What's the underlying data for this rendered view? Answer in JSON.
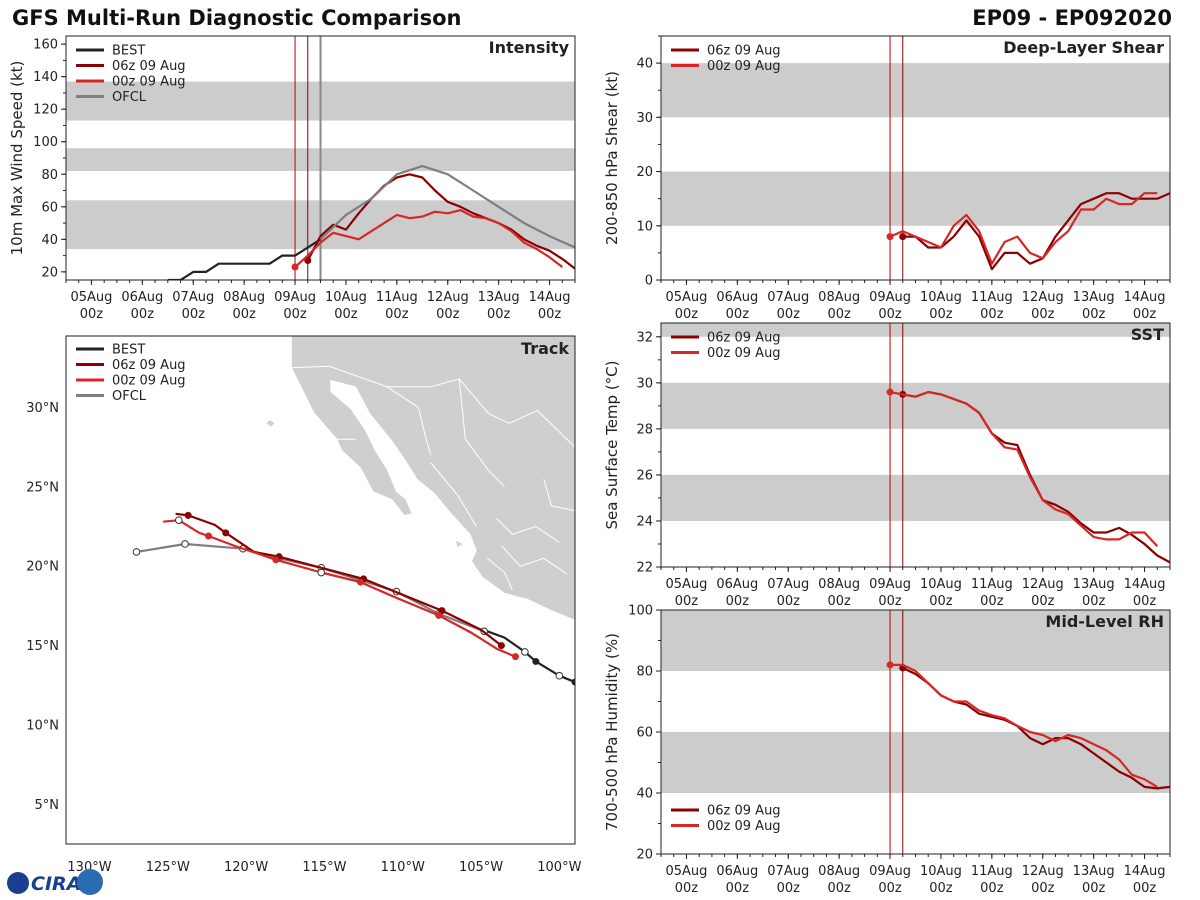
{
  "header": {
    "title": "GFS Multi-Run Diagnostic Comparison",
    "storm": "EP09 - EP092020"
  },
  "logo": {
    "text": "CIRA"
  },
  "colors": {
    "best": "#222222",
    "run06": "#8b0000",
    "run00": "#d62728",
    "ofcl": "#7f7f7f",
    "band": "#cccccc",
    "vline": "#c00000",
    "vline_ofcl": "#888888"
  },
  "time_ticks": [
    {
      "t": 0,
      "day": "05Aug",
      "hr": "00z"
    },
    {
      "t": 24,
      "day": "06Aug",
      "hr": "00z"
    },
    {
      "t": 48,
      "day": "07Aug",
      "hr": "00z"
    },
    {
      "t": 72,
      "day": "08Aug",
      "hr": "00z"
    },
    {
      "t": 96,
      "day": "09Aug",
      "hr": "00z"
    },
    {
      "t": 120,
      "day": "10Aug",
      "hr": "00z"
    },
    {
      "t": 144,
      "day": "11Aug",
      "hr": "00z"
    },
    {
      "t": 168,
      "day": "12Aug",
      "hr": "00z"
    },
    {
      "t": 192,
      "day": "13Aug",
      "hr": "00z"
    },
    {
      "t": 216,
      "day": "14Aug",
      "hr": "00z"
    }
  ],
  "chart_data": [
    {
      "id": "intensity",
      "type": "line",
      "title": "Intensity",
      "ylabel": "10m Max Wind Speed (kt)",
      "xlim": [
        -12,
        228
      ],
      "ylim": [
        15,
        165
      ],
      "yticks": [
        20,
        40,
        60,
        80,
        100,
        120,
        140,
        160
      ],
      "bands": [
        [
          34,
          64
        ],
        [
          82,
          96
        ],
        [
          113,
          137
        ]
      ],
      "vlines": [
        {
          "t": 96,
          "series": "00z"
        },
        {
          "t": 102,
          "series": "06z"
        },
        {
          "t": 108,
          "series": "OFCL"
        }
      ],
      "legend": [
        "BEST",
        "06z 09 Aug",
        "00z 09 Aug",
        "OFCL"
      ],
      "series": [
        {
          "name": "BEST",
          "color": "#222222",
          "t": [
            36,
            42,
            48,
            54,
            60,
            66,
            72,
            78,
            84,
            90,
            96,
            102,
            108
          ],
          "v": [
            15,
            15,
            20,
            20,
            25,
            25,
            25,
            25,
            25,
            30,
            30,
            35,
            40
          ]
        },
        {
          "name": "06z 09 Aug",
          "color": "#8b0000",
          "start_dot": true,
          "t": [
            102,
            108,
            114,
            120,
            126,
            132,
            138,
            144,
            150,
            156,
            162,
            168,
            174,
            180,
            186,
            192,
            198,
            204,
            210,
            216,
            222,
            228
          ],
          "v": [
            27,
            42,
            49,
            46,
            56,
            65,
            73,
            78,
            80,
            78,
            70,
            63,
            60,
            56,
            53,
            50,
            46,
            40,
            36,
            33,
            28,
            22
          ]
        },
        {
          "name": "00z 09 Aug",
          "color": "#d62728",
          "start_dot": true,
          "t": [
            96,
            102,
            108,
            114,
            120,
            126,
            132,
            138,
            144,
            150,
            156,
            162,
            168,
            174,
            180,
            186,
            192,
            198,
            204,
            210,
            216,
            222
          ],
          "v": [
            23,
            30,
            38,
            44,
            42,
            40,
            45,
            50,
            55,
            53,
            54,
            57,
            56,
            58,
            54,
            53,
            50,
            45,
            38,
            34,
            29,
            23
          ]
        },
        {
          "name": "OFCL",
          "color": "#7f7f7f",
          "t": [
            108,
            120,
            132,
            144,
            156,
            168,
            180,
            192,
            204,
            216,
            228
          ],
          "v": [
            40,
            55,
            65,
            80,
            85,
            80,
            70,
            60,
            50,
            42,
            35
          ]
        }
      ]
    },
    {
      "id": "shear",
      "type": "line",
      "title": "Deep-Layer Shear",
      "ylabel": "200-850 hPa Shear (kt)",
      "xlim": [
        -12,
        228
      ],
      "ylim": [
        0,
        45
      ],
      "yticks": [
        0,
        10,
        20,
        30,
        40
      ],
      "bands": [
        [
          10,
          20
        ],
        [
          30,
          40
        ]
      ],
      "vlines": [
        {
          "t": 96,
          "series": "00z"
        },
        {
          "t": 102,
          "series": "06z"
        }
      ],
      "legend": [
        "06z 09 Aug",
        "00z 09 Aug"
      ],
      "series": [
        {
          "name": "06z 09 Aug",
          "color": "#8b0000",
          "start_dot": true,
          "t": [
            102,
            108,
            114,
            120,
            126,
            132,
            138,
            144,
            150,
            156,
            162,
            168,
            174,
            180,
            186,
            192,
            198,
            204,
            210,
            216,
            222,
            228
          ],
          "v": [
            8,
            8,
            6,
            6,
            8,
            11,
            8,
            2,
            5,
            5,
            3,
            4,
            8,
            11,
            14,
            15,
            16,
            16,
            15,
            15,
            15,
            16
          ]
        },
        {
          "name": "00z 09 Aug",
          "color": "#d62728",
          "start_dot": true,
          "t": [
            96,
            102,
            108,
            114,
            120,
            126,
            132,
            138,
            144,
            150,
            156,
            162,
            168,
            174,
            180,
            186,
            192,
            198,
            204,
            210,
            216,
            222
          ],
          "v": [
            8,
            9,
            8,
            7,
            6,
            10,
            12,
            9,
            3,
            7,
            8,
            5,
            4,
            7,
            9,
            13,
            13,
            15,
            14,
            14,
            16,
            16
          ]
        }
      ]
    },
    {
      "id": "sst",
      "type": "line",
      "title": "SST",
      "ylabel": "Sea Surface Temp (°C)",
      "xlim": [
        -12,
        228
      ],
      "ylim": [
        22,
        32.6
      ],
      "yticks": [
        22,
        24,
        26,
        28,
        30,
        32
      ],
      "bands": [
        [
          24,
          26
        ],
        [
          28,
          30
        ],
        [
          32,
          34
        ]
      ],
      "vlines": [
        {
          "t": 96,
          "series": "00z"
        },
        {
          "t": 102,
          "series": "06z"
        }
      ],
      "legend": [
        "06z 09 Aug",
        "00z 09 Aug"
      ],
      "series": [
        {
          "name": "06z 09 Aug",
          "color": "#8b0000",
          "start_dot": true,
          "t": [
            102,
            108,
            114,
            120,
            126,
            132,
            138,
            144,
            150,
            156,
            162,
            168,
            174,
            180,
            186,
            192,
            198,
            204,
            210,
            216,
            222,
            228
          ],
          "v": [
            29.5,
            29.4,
            29.6,
            29.5,
            29.3,
            29.1,
            28.7,
            27.8,
            27.4,
            27.3,
            26.0,
            24.9,
            24.7,
            24.4,
            23.9,
            23.5,
            23.5,
            23.7,
            23.4,
            23.0,
            22.5,
            22.2
          ]
        },
        {
          "name": "00z 09 Aug",
          "color": "#d62728",
          "start_dot": true,
          "t": [
            96,
            102,
            108,
            114,
            120,
            126,
            132,
            138,
            144,
            150,
            156,
            162,
            168,
            174,
            180,
            186,
            192,
            198,
            204,
            210,
            216,
            222
          ],
          "v": [
            29.6,
            29.5,
            29.4,
            29.6,
            29.5,
            29.3,
            29.1,
            28.7,
            27.8,
            27.2,
            27.1,
            25.9,
            24.9,
            24.5,
            24.3,
            23.8,
            23.3,
            23.2,
            23.2,
            23.5,
            23.5,
            22.9
          ]
        }
      ]
    },
    {
      "id": "rh",
      "type": "line",
      "title": "Mid-Level RH",
      "ylabel": "700-500 hPa Humidity (%)",
      "xlim": [
        -12,
        228
      ],
      "ylim": [
        20,
        100
      ],
      "yticks": [
        20,
        40,
        60,
        80,
        100
      ],
      "bands": [
        [
          40,
          60
        ],
        [
          80,
          100
        ]
      ],
      "vlines": [
        {
          "t": 96,
          "series": "00z"
        },
        {
          "t": 102,
          "series": "06z"
        }
      ],
      "legend": [
        "06z 09 Aug",
        "00z 09 Aug"
      ],
      "series": [
        {
          "name": "06z 09 Aug",
          "color": "#8b0000",
          "start_dot": true,
          "t": [
            102,
            108,
            114,
            120,
            126,
            132,
            138,
            144,
            150,
            156,
            162,
            168,
            174,
            180,
            186,
            192,
            198,
            204,
            210,
            216,
            222,
            228
          ],
          "v": [
            81,
            79,
            76,
            72,
            70,
            69,
            66,
            65,
            64,
            62,
            58,
            56,
            58,
            58,
            56,
            53,
            50,
            47,
            45,
            42,
            41.5,
            42
          ]
        },
        {
          "name": "00z 09 Aug",
          "color": "#d62728",
          "start_dot": true,
          "t": [
            96,
            102,
            108,
            114,
            120,
            126,
            132,
            138,
            144,
            150,
            156,
            162,
            168,
            174,
            180,
            186,
            192,
            198,
            204,
            210,
            216,
            222
          ],
          "v": [
            82,
            82,
            80,
            76,
            72,
            70,
            70,
            67,
            65.5,
            64.5,
            62,
            60,
            59,
            57,
            59,
            58,
            56,
            54,
            51,
            46,
            44.5,
            42
          ]
        }
      ]
    },
    {
      "id": "track",
      "type": "scatter",
      "title": "Track",
      "xlim": [
        -131.5,
        -99
      ],
      "ylim": [
        2.5,
        34.5
      ],
      "xticks": [
        {
          "v": -130,
          "label": "130°W"
        },
        {
          "v": -125,
          "label": "125°W"
        },
        {
          "v": -120,
          "label": "120°W"
        },
        {
          "v": -115,
          "label": "115°W"
        },
        {
          "v": -110,
          "label": "110°W"
        },
        {
          "v": -105,
          "label": "105°W"
        },
        {
          "v": -100,
          "label": "100°W"
        }
      ],
      "yticks": [
        {
          "v": 5,
          "label": "5°N"
        },
        {
          "v": 10,
          "label": "10°N"
        },
        {
          "v": 15,
          "label": "15°N"
        },
        {
          "v": 20,
          "label": "20°N"
        },
        {
          "v": 25,
          "label": "25°N"
        },
        {
          "v": 30,
          "label": "30°N"
        }
      ],
      "legend": [
        "BEST",
        "06z 09 Aug",
        "00z 09 Aug",
        "OFCL"
      ],
      "series": [
        {
          "name": "BEST",
          "color": "#222222",
          "lon": [
            -99.0,
            -100.0,
            -101.5,
            -102.2,
            -103.5,
            -104.6
          ],
          "lat": [
            12.7,
            13.1,
            14.0,
            14.6,
            15.5,
            15.9
          ],
          "open": [
            1,
            3
          ],
          "filled": [
            0,
            2
          ]
        },
        {
          "name": "OFCL",
          "color": "#7f7f7f",
          "lon": [
            -104.8,
            -107.7,
            -110.4,
            -115.2,
            -117.9,
            -120.2,
            -123.9,
            -127.0
          ],
          "lat": [
            15.9,
            17.0,
            18.4,
            19.9,
            20.5,
            21.1,
            21.4,
            20.9
          ],
          "open": [
            0,
            1,
            2,
            3,
            4,
            5,
            6,
            7
          ],
          "filled": []
        },
        {
          "name": "06z 09 Aug",
          "color": "#8b0000",
          "lon": [
            -103.7,
            -105.0,
            -107.5,
            -110.0,
            -112.5,
            -115.2,
            -117.9,
            -119.5,
            -121.3,
            -122.0,
            -123.7,
            -124.5
          ],
          "lat": [
            15.0,
            16.0,
            17.2,
            18.2,
            19.2,
            19.9,
            20.6,
            20.9,
            22.1,
            22.6,
            23.2,
            23.3
          ],
          "open": [],
          "filled": [
            0,
            2,
            4,
            6,
            8,
            10
          ]
        },
        {
          "name": "00z 09 Aug",
          "color": "#d62728",
          "lon": [
            -102.8,
            -104.0,
            -105.6,
            -107.7,
            -110.4,
            -112.7,
            -115.2,
            -118.1,
            -120.8,
            -122.4,
            -123.0,
            -124.3,
            -125.3
          ],
          "lat": [
            14.3,
            14.8,
            15.8,
            16.9,
            18.0,
            19.0,
            19.6,
            20.4,
            21.3,
            21.9,
            22.1,
            22.9,
            22.8
          ],
          "open": [
            6,
            11
          ],
          "filled": [
            0,
            3,
            5,
            7,
            9
          ]
        }
      ]
    }
  ]
}
